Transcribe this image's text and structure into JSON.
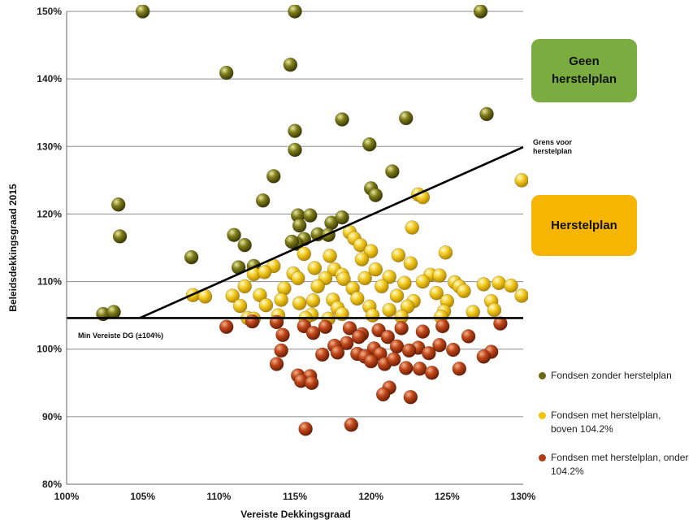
{
  "chart_data": {
    "type": "scatter",
    "xlabel": "Vereiste Dekkingsgraad",
    "ylabel": "Beleidsdekkingsgraad 2015",
    "xlim": [
      100,
      130
    ],
    "ylim": [
      80,
      150
    ],
    "x_ticks": [
      "100%",
      "105%",
      "110%",
      "115%",
      "120%",
      "125%",
      "130%"
    ],
    "y_ticks": [
      "80%",
      "90%",
      "100%",
      "110%",
      "120%",
      "130%",
      "140%",
      "150%"
    ],
    "grid": "horizontal",
    "lines": [
      {
        "name": "min-dg-line",
        "label": "Min Vereiste DG (±104%)",
        "x": [
          100,
          130
        ],
        "y": [
          104.6,
          104.6
        ]
      },
      {
        "name": "grens-line",
        "label": "Grens voor herstelplan",
        "x": [
          104.8,
          130
        ],
        "y": [
          104.6,
          129.9
        ]
      }
    ],
    "regions": [
      {
        "label": "Geen herstelplan",
        "color": "#7aac3f"
      },
      {
        "label": "Herstelplan",
        "color": "#f6b500"
      }
    ],
    "series": [
      {
        "name": "Fondsen zonder herstelplan",
        "color": "#6b6a12",
        "points": [
          [
            105,
            150
          ],
          [
            115,
            150
          ],
          [
            127.2,
            150
          ],
          [
            114.7,
            142.1
          ],
          [
            110.5,
            140.9
          ],
          [
            127.6,
            134.8
          ],
          [
            118.1,
            134
          ],
          [
            122.3,
            134.2
          ],
          [
            115,
            132.3
          ],
          [
            115,
            129.5
          ],
          [
            119.9,
            130.3
          ],
          [
            113.6,
            125.6
          ],
          [
            121.4,
            126.3
          ],
          [
            120,
            123.8
          ],
          [
            120.3,
            122.8
          ],
          [
            103.4,
            121.4
          ],
          [
            112.9,
            122
          ],
          [
            103.5,
            116.7
          ],
          [
            115.2,
            119.8
          ],
          [
            116,
            119.8
          ],
          [
            117.4,
            118.7
          ],
          [
            118.1,
            119.5
          ],
          [
            116.5,
            117
          ],
          [
            115.3,
            118.3
          ],
          [
            115.6,
            116.3
          ],
          [
            115.1,
            115.6
          ],
          [
            114.8,
            115.9
          ],
          [
            117.2,
            116.9
          ],
          [
            111.7,
            115.4
          ],
          [
            111,
            116.9
          ],
          [
            108.2,
            113.6
          ],
          [
            111.3,
            112.1
          ],
          [
            112.3,
            112.3
          ],
          [
            102.4,
            105.2
          ],
          [
            103.1,
            105.5
          ]
        ]
      },
      {
        "name": "Fondsen met herstelplan, boven 104.2%",
        "color": "#f1c40f",
        "points": [
          [
            129.9,
            125
          ],
          [
            123.1,
            122.9
          ],
          [
            123.4,
            122.5
          ],
          [
            122.7,
            118
          ],
          [
            118.6,
            117.3
          ],
          [
            118.9,
            116.4
          ],
          [
            119.3,
            115.4
          ],
          [
            120,
            114.5
          ],
          [
            124.9,
            114.3
          ],
          [
            121.8,
            113.9
          ],
          [
            115.6,
            114.1
          ],
          [
            117.3,
            113.8
          ],
          [
            119.4,
            113.3
          ],
          [
            122.6,
            112.7
          ],
          [
            113.6,
            112.3
          ],
          [
            116.3,
            112
          ],
          [
            117.6,
            111.8
          ],
          [
            114.9,
            111.2
          ],
          [
            120.3,
            111.8
          ],
          [
            123.9,
            111
          ],
          [
            124.5,
            110.9
          ],
          [
            118.1,
            111
          ],
          [
            112.3,
            111.1
          ],
          [
            113,
            111.4
          ],
          [
            115.2,
            110.5
          ],
          [
            117,
            110.5
          ],
          [
            118.2,
            110.4
          ],
          [
            119.6,
            110.5
          ],
          [
            121.2,
            110.7
          ],
          [
            122.2,
            109.8
          ],
          [
            123.4,
            110
          ],
          [
            125.5,
            109.9
          ],
          [
            125.8,
            109.3
          ],
          [
            127.4,
            109.6
          ],
          [
            128.4,
            109.8
          ],
          [
            129.2,
            109.4
          ],
          [
            111.7,
            109.3
          ],
          [
            114.3,
            109
          ],
          [
            116.5,
            109.3
          ],
          [
            118.8,
            109
          ],
          [
            120.7,
            109.3
          ],
          [
            126.1,
            108.6
          ],
          [
            124.3,
            108.3
          ],
          [
            108.3,
            108
          ],
          [
            109.1,
            107.8
          ],
          [
            110.9,
            107.9
          ],
          [
            112.7,
            108
          ],
          [
            114.1,
            107.3
          ],
          [
            116.2,
            107.2
          ],
          [
            117.5,
            107.3
          ],
          [
            119.1,
            107.5
          ],
          [
            121.7,
            107.9
          ],
          [
            122.8,
            107.1
          ],
          [
            125,
            107.1
          ],
          [
            127.9,
            107.1
          ],
          [
            129.9,
            107.9
          ],
          [
            111.4,
            106.4
          ],
          [
            113.1,
            106.5
          ],
          [
            115.3,
            106.8
          ],
          [
            117.8,
            106.1
          ],
          [
            119.9,
            106.3
          ],
          [
            121.2,
            105.8
          ],
          [
            122.4,
            106.3
          ],
          [
            124.8,
            105.6
          ],
          [
            126.7,
            105.5
          ],
          [
            128.1,
            105.8
          ],
          [
            111.9,
            104.6
          ],
          [
            113.9,
            105
          ],
          [
            116.1,
            105.1
          ],
          [
            118.1,
            105.2
          ],
          [
            120.1,
            105
          ],
          [
            122,
            104.8
          ],
          [
            124.6,
            104.8
          ],
          [
            112.3,
            104.5
          ],
          [
            115.7,
            104.6
          ],
          [
            117.2,
            104.5
          ]
        ]
      },
      {
        "name": "Fondsen met herstelplan, onder 104.2%",
        "color": "#b23a14",
        "points": [
          [
            128.5,
            103.8
          ],
          [
            110.5,
            103.3
          ],
          [
            112.2,
            104.1
          ],
          [
            113.8,
            104
          ],
          [
            115.6,
            103.4
          ],
          [
            117,
            103.3
          ],
          [
            118.6,
            103.1
          ],
          [
            120.5,
            102.8
          ],
          [
            122,
            103.1
          ],
          [
            123.4,
            102.6
          ],
          [
            124.7,
            103.4
          ],
          [
            114.2,
            102.1
          ],
          [
            116.2,
            102.4
          ],
          [
            119.4,
            102.2
          ],
          [
            121.1,
            101.8
          ],
          [
            126.4,
            101.9
          ],
          [
            118.4,
            100.9
          ],
          [
            117.6,
            100.5
          ],
          [
            120.2,
            100.1
          ],
          [
            121.7,
            100.4
          ],
          [
            123.1,
            100.2
          ],
          [
            124.5,
            100.6
          ],
          [
            114.1,
            99.8
          ],
          [
            117.8,
            99.5
          ],
          [
            119.1,
            99.3
          ],
          [
            120.6,
            99.3
          ],
          [
            122.5,
            99.8
          ],
          [
            123.8,
            99.4
          ],
          [
            125.4,
            99.9
          ],
          [
            127.9,
            99.6
          ],
          [
            127.4,
            98.9
          ],
          [
            113.8,
            97.8
          ],
          [
            116.8,
            99.2
          ],
          [
            119.6,
            98.9
          ],
          [
            120.9,
            97.8
          ],
          [
            122.3,
            97.2
          ],
          [
            123.2,
            97.1
          ],
          [
            124,
            96.5
          ],
          [
            125.8,
            97.1
          ],
          [
            115.2,
            96.1
          ],
          [
            116,
            96
          ],
          [
            115.4,
            95.3
          ],
          [
            116.1,
            95
          ],
          [
            121.2,
            94.3
          ],
          [
            120.8,
            93.3
          ],
          [
            122.6,
            92.9
          ],
          [
            115.7,
            88.2
          ],
          [
            118.7,
            88.8
          ],
          [
            120,
            98.2
          ],
          [
            121.5,
            98.5
          ],
          [
            119.2,
            101.8
          ]
        ]
      }
    ],
    "legend": {
      "placement": "right"
    }
  }
}
